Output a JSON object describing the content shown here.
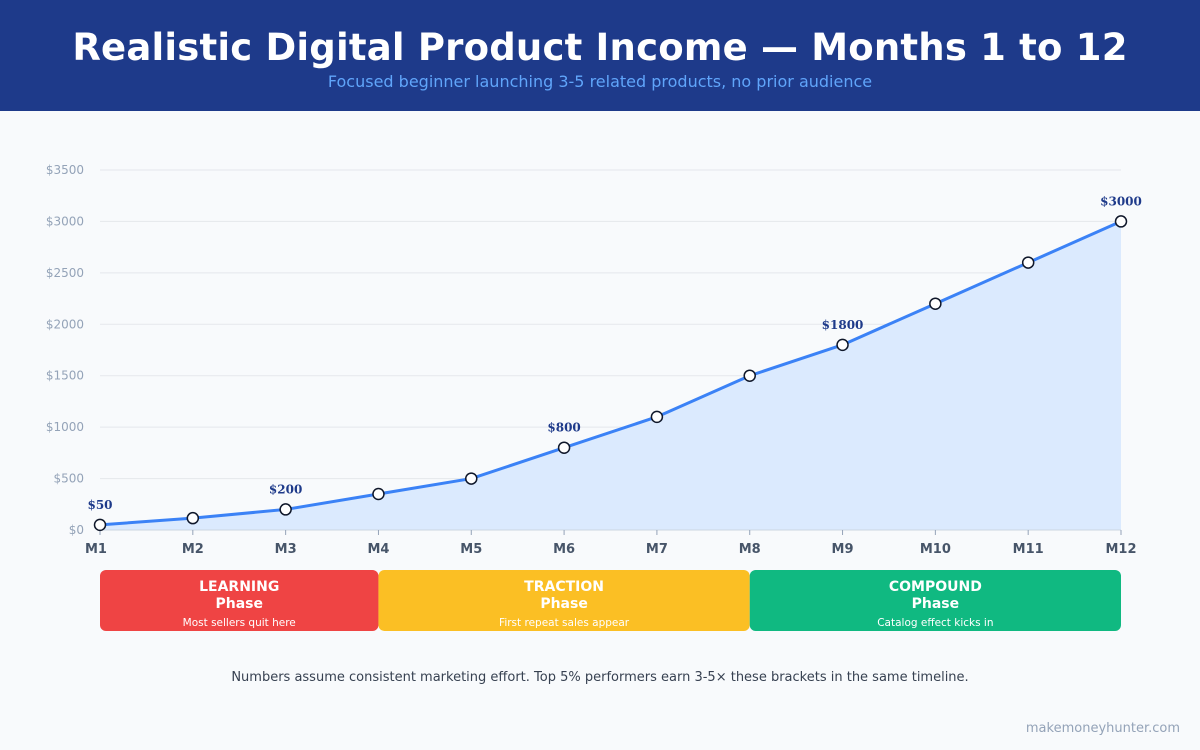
{
  "header": {
    "title": "Realistic Digital Product Income — Months 1 to 12",
    "subtitle": "Focused beginner launching 3-5 related products, no prior audience"
  },
  "chart_data": {
    "type": "area",
    "x": [
      "M1",
      "M2",
      "M3",
      "M4",
      "M5",
      "M6",
      "M7",
      "M8",
      "M9",
      "M10",
      "M11",
      "M12"
    ],
    "series": [
      {
        "values": [
          50,
          115,
          200,
          350,
          500,
          800,
          1100,
          1500,
          1800,
          2200,
          2600,
          3000
        ]
      }
    ],
    "data_labels": [
      {
        "x": "M1",
        "text": "$50"
      },
      {
        "x": "M3",
        "text": "$200"
      },
      {
        "x": "M6",
        "text": "$800"
      },
      {
        "x": "M9",
        "text": "$1800"
      },
      {
        "x": "M12",
        "text": "$3000"
      }
    ],
    "ylim": [
      0,
      3500
    ],
    "yticks": [
      0,
      500,
      1000,
      1500,
      2000,
      2500,
      3000,
      3500
    ],
    "ytick_labels": [
      "$0",
      "$500",
      "$1000",
      "$1500",
      "$2000",
      "$2500",
      "$3000",
      "$3500"
    ],
    "grid": true,
    "phases": [
      {
        "name": "LEARNING",
        "line2": "Phase",
        "note": "Most sellers quit here",
        "from": "M1",
        "to": "M4",
        "color": "#ef4444"
      },
      {
        "name": "TRACTION",
        "line2": "Phase",
        "note": "First repeat sales appear",
        "from": "M4",
        "to": "M8",
        "color": "#fbbf24"
      },
      {
        "name": "COMPOUND",
        "line2": "Phase",
        "note": "Catalog effect kicks in",
        "from": "M8",
        "to": "M12",
        "color": "#10b981"
      }
    ],
    "colors": {
      "line": "#3b82f6",
      "fill": "#dbeafe",
      "grid": "#e5e7eb",
      "tick": "#94a3b8",
      "xtick": "#475569",
      "label": "#1e3a8a",
      "marker_stroke": "#0f172a"
    }
  },
  "footnote": "Numbers assume consistent marketing effort. Top 5% performers earn 3-5× these brackets in the same timeline.",
  "watermark": "makemoneyhunter.com"
}
